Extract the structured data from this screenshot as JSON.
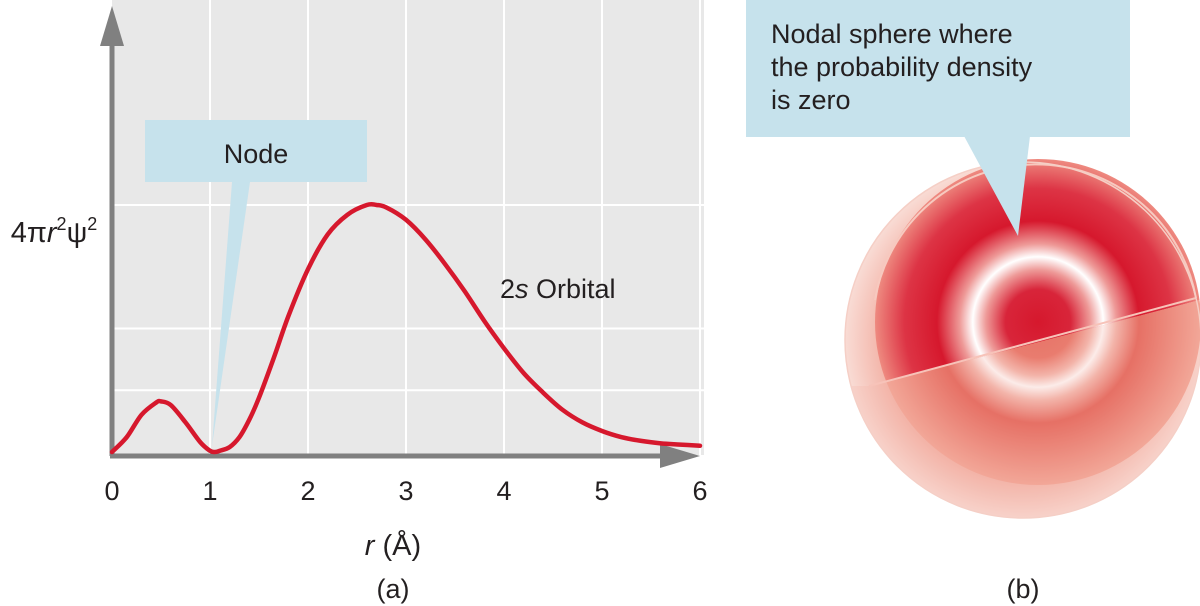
{
  "chart_data": {
    "type": "line",
    "x_ticks": [
      "0",
      "1",
      "2",
      "3",
      "4",
      "5",
      "6"
    ],
    "xlim": [
      0,
      6
    ],
    "ylim": [
      0,
      1
    ],
    "ylabel": "4πr²ψ²",
    "xlabel": "r (Å)",
    "curve_label": "2s Orbital",
    "grid": true,
    "series": [
      {
        "x": [
          0,
          0.15,
          0.3,
          0.45,
          0.5,
          0.6,
          0.75,
          0.9,
          1.0,
          1.05,
          1.1,
          1.2,
          1.3,
          1.4,
          1.5,
          1.65,
          1.8,
          2.0,
          2.2,
          2.4,
          2.6,
          2.7,
          2.8,
          3.0,
          3.2,
          3.4,
          3.6,
          3.8,
          4.0,
          4.2,
          4.4,
          4.6,
          4.8,
          5.0,
          5.2,
          5.4,
          5.6,
          5.8,
          6.0
        ],
        "y": [
          0,
          0.06,
          0.15,
          0.2,
          0.205,
          0.19,
          0.12,
          0.04,
          0.005,
          0.0,
          0.005,
          0.02,
          0.06,
          0.13,
          0.22,
          0.38,
          0.55,
          0.74,
          0.88,
          0.96,
          1.0,
          1.0,
          0.99,
          0.94,
          0.86,
          0.76,
          0.65,
          0.53,
          0.42,
          0.32,
          0.24,
          0.17,
          0.12,
          0.085,
          0.06,
          0.045,
          0.035,
          0.03,
          0.025
        ],
        "color": "#d6182d"
      }
    ],
    "axis_color": "#808080",
    "plot_bg": "#e8e8e8"
  },
  "callouts": {
    "node": "Node",
    "nodal_sphere": [
      "Nodal sphere where",
      "the probability density",
      "is zero"
    ]
  },
  "panel_labels": {
    "a": "(a)",
    "b": "(b)"
  },
  "colors": {
    "callout_bg": "#c6e2ec",
    "sphere_red": "#d6182d",
    "sphere_light": "#f6c9c1"
  }
}
